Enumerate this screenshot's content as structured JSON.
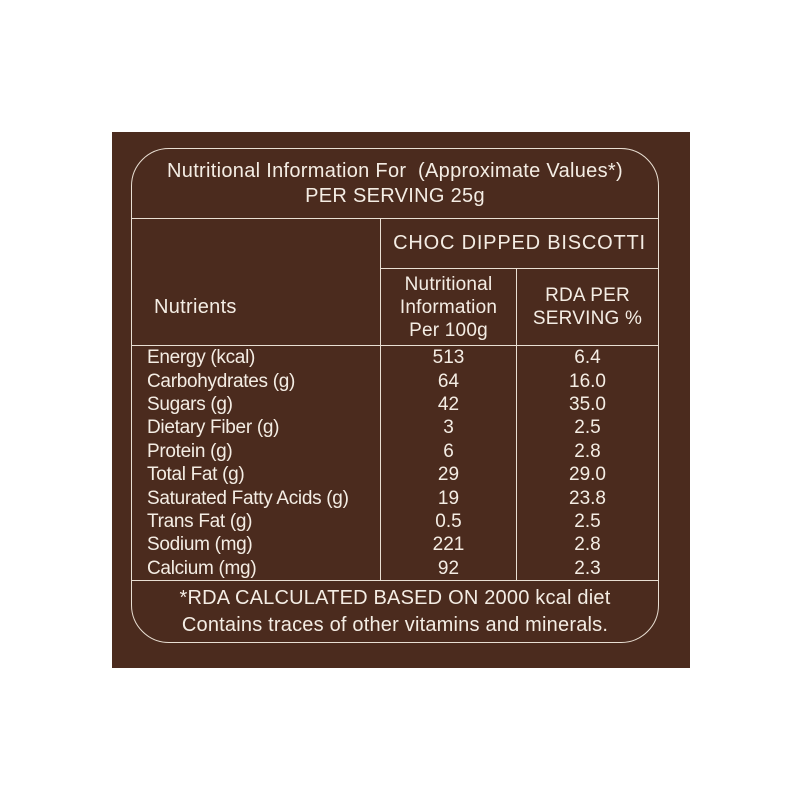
{
  "label": {
    "title_line1": "Nutritional Information For  (Approximate Values*)",
    "title_line2": "PER SERVING 25g",
    "product_header": "CHOC DIPPED BISCOTTI",
    "columns": {
      "nutrients": "Nutrients",
      "per100g": [
        "Nutritional",
        "Information",
        "Per 100g"
      ],
      "rda": [
        "RDA PER",
        "SERVING %"
      ]
    },
    "rows": [
      {
        "nutrient": "Energy (kcal)",
        "per_100g": "513",
        "rda_per_serving": "6.4"
      },
      {
        "nutrient": "Carbohydrates (g)",
        "per_100g": "64",
        "rda_per_serving": "16.0"
      },
      {
        "nutrient": "Sugars (g)",
        "per_100g": "42",
        "rda_per_serving": "35.0"
      },
      {
        "nutrient": "Dietary Fiber (g)",
        "per_100g": "3",
        "rda_per_serving": "2.5"
      },
      {
        "nutrient": "Protein (g)",
        "per_100g": "6",
        "rda_per_serving": "2.8"
      },
      {
        "nutrient": "Total Fat (g)",
        "per_100g": "29",
        "rda_per_serving": "29.0"
      },
      {
        "nutrient": "Saturated Fatty Acids (g)",
        "per_100g": "19",
        "rda_per_serving": "23.8"
      },
      {
        "nutrient": "Trans Fat (g)",
        "per_100g": "0.5",
        "rda_per_serving": "2.5"
      },
      {
        "nutrient": "Sodium (mg)",
        "per_100g": "221",
        "rda_per_serving": "2.8"
      },
      {
        "nutrient": "Calcium (mg)",
        "per_100g": "92",
        "rda_per_serving": "2.3"
      }
    ],
    "footnote_line1": "*RDA CALCULATED BASED ON 2000 kcal diet",
    "footnote_line2": "Contains traces of other vitamins and minerals.",
    "colors": {
      "panel_background": "#4B2B1E",
      "line": "#E9DFD3",
      "text": "#F4EDE4",
      "page_background": "#FFFFFF"
    }
  }
}
